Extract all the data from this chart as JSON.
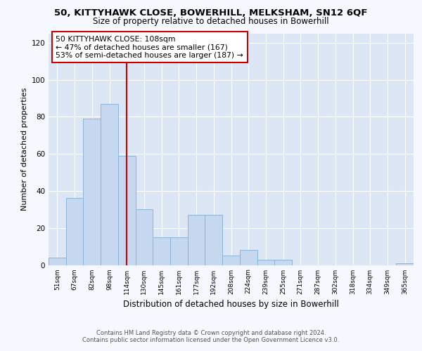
{
  "title1": "50, KITTYHAWK CLOSE, BOWERHILL, MELKSHAM, SN12 6QF",
  "title2": "Size of property relative to detached houses in Bowerhill",
  "xlabel": "Distribution of detached houses by size in Bowerhill",
  "ylabel": "Number of detached properties",
  "categories": [
    "51sqm",
    "67sqm",
    "82sqm",
    "98sqm",
    "114sqm",
    "130sqm",
    "145sqm",
    "161sqm",
    "177sqm",
    "192sqm",
    "208sqm",
    "224sqm",
    "239sqm",
    "255sqm",
    "271sqm",
    "287sqm",
    "302sqm",
    "318sqm",
    "334sqm",
    "349sqm",
    "365sqm"
  ],
  "values": [
    4,
    36,
    79,
    87,
    59,
    30,
    15,
    15,
    27,
    27,
    5,
    8,
    3,
    3,
    0,
    0,
    0,
    0,
    0,
    0,
    1
  ],
  "bar_color": "#c5d8ef",
  "bar_edge_color": "#8ab4d8",
  "vline_x_index": 4,
  "vline_color": "#cc0000",
  "annotation_text": "50 KITTYHAWK CLOSE: 108sqm\n← 47% of detached houses are smaller (167)\n53% of semi-detached houses are larger (187) →",
  "annotation_box_color": "#ffffff",
  "annotation_box_edge_color": "#cc0000",
  "ylim": [
    0,
    125
  ],
  "yticks": [
    0,
    20,
    40,
    60,
    80,
    100,
    120
  ],
  "plot_bg_color": "#dce6f5",
  "fig_bg_color": "#f5f8ff",
  "grid_color": "#ffffff",
  "footer_line1": "Contains HM Land Registry data © Crown copyright and database right 2024.",
  "footer_line2": "Contains public sector information licensed under the Open Government Licence v3.0."
}
